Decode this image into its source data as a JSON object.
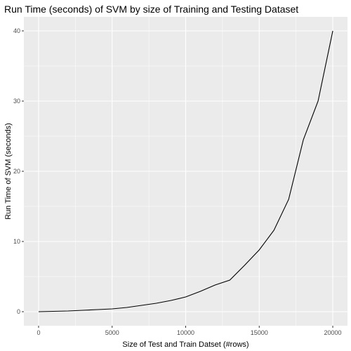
{
  "chart_data": {
    "type": "line",
    "title": "Run Time (seconds) of SVM by size of Training and Testing Dataset",
    "xlabel": "Size of Test and Train Datset (#rows)",
    "ylabel": "Run Time of SVM (seconds)",
    "xlim": [
      -1000,
      21000
    ],
    "ylim": [
      -2,
      42
    ],
    "x_ticks": [
      0,
      5000,
      10000,
      15000,
      20000
    ],
    "y_ticks": [
      0,
      10,
      20,
      30,
      40
    ],
    "grid": true,
    "legend": "none",
    "colors": {
      "panel": "#ebebeb",
      "grid": "#ffffff",
      "line": "#000000",
      "tick_text": "#4d4d4d",
      "tick_mark": "#333333"
    },
    "series": [
      {
        "x": [
          0,
          1000,
          2000,
          3000,
          4000,
          5000,
          6000,
          7000,
          8000,
          9000,
          10000,
          11000,
          12000,
          13000,
          14000,
          15000,
          16000,
          17000,
          18000,
          19000,
          20000
        ],
        "y": [
          0,
          0.05,
          0.1,
          0.2,
          0.3,
          0.4,
          0.6,
          0.9,
          1.2,
          1.6,
          2.1,
          2.9,
          3.8,
          4.5,
          6.6,
          8.8,
          11.6,
          16.0,
          24.5,
          30.0,
          40.0
        ]
      }
    ]
  }
}
